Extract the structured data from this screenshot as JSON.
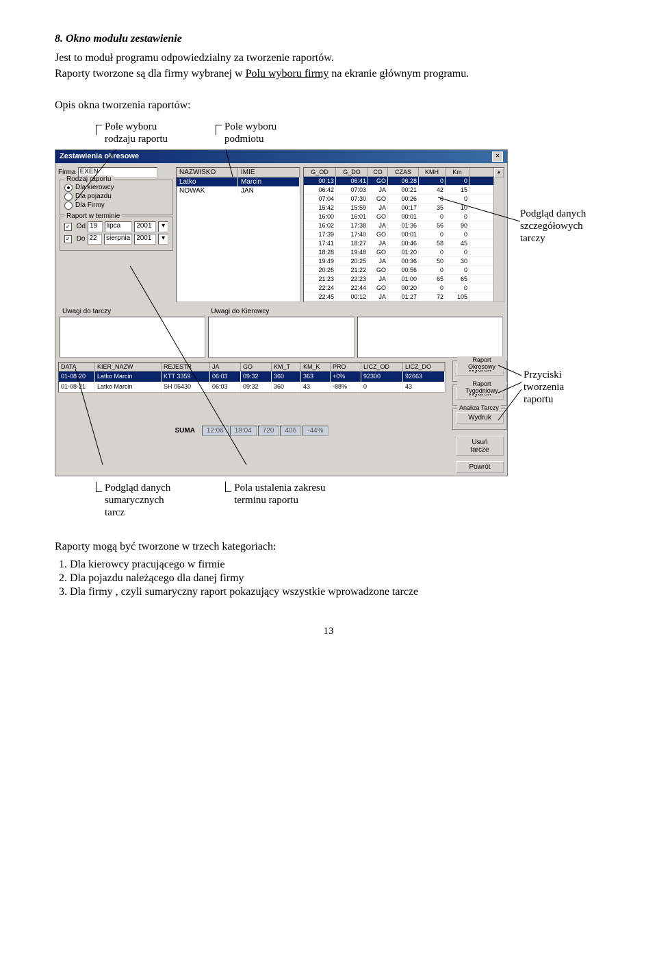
{
  "heading": "8.  Okno modułu zestawienie",
  "para1a": "Jest to moduł programu odpowiedzialny za tworzenie raportów.",
  "para1b": "Raporty tworzone są dla firmy wybranej w ",
  "para1b_u": "Polu wyboru firmy",
  "para1c": " na ekranie głównym programu.",
  "para2": "Opis okna tworzenia raportów:",
  "annot_top1": "Pole wyboru\nrodzaju raportu",
  "annot_top2": "Pole wyboru\npodmiotu",
  "annot_right1": "Podgląd danych\nszczegółowych\ntarczy",
  "annot_right2": "Przyciski\ntworzenia\nraportu",
  "annot_bot1": "Podgląd danych\nsumarycznych\ntarcz",
  "annot_bot2": "Pola  ustalenia zakresu\nterminu raportu",
  "win_title": "Zestawienia okresowe",
  "firma_label": "Firma",
  "firma_value": "EXEN",
  "rodzaj_legend": "Rodzaj raportu",
  "radio1": "Dla kierowcy",
  "radio2": "Dla pojazdu",
  "radio3": "Dla Firmy",
  "raport_legend": "Raport w terminie",
  "od_label": "Od",
  "od_day": "19",
  "od_month": "lipca",
  "od_year": "2001",
  "do_label": "Do",
  "do_day": "22",
  "do_month": "sierpnia",
  "do_year": "2001",
  "name_h1": "NAZWISKO",
  "name_h2": "IMIE",
  "names": [
    [
      "Latko",
      "Marcin"
    ],
    [
      "NOWAK",
      "JAN"
    ]
  ],
  "grid_hdrs": [
    "G_OD",
    "G_DO",
    "CO",
    "CZAS",
    "KMH",
    "Km"
  ],
  "grid_rows": [
    [
      "00:13",
      "06:41",
      "GO",
      "06:28",
      "0",
      "0"
    ],
    [
      "06:42",
      "07:03",
      "JA",
      "00:21",
      "42",
      "15"
    ],
    [
      "07:04",
      "07:30",
      "GO",
      "00:26",
      "0",
      "0"
    ],
    [
      "15:42",
      "15:59",
      "JA",
      "00:17",
      "35",
      "10"
    ],
    [
      "16:00",
      "16:01",
      "GO",
      "00:01",
      "0",
      "0"
    ],
    [
      "16:02",
      "17:38",
      "JA",
      "01:36",
      "56",
      "90"
    ],
    [
      "17:39",
      "17:40",
      "GO",
      "00:01",
      "0",
      "0"
    ],
    [
      "17:41",
      "18:27",
      "JA",
      "00:46",
      "58",
      "45"
    ],
    [
      "18:28",
      "19:48",
      "GO",
      "01:20",
      "0",
      "0"
    ],
    [
      "19:49",
      "20:25",
      "JA",
      "00:36",
      "50",
      "30"
    ],
    [
      "20:26",
      "21:22",
      "GO",
      "00:56",
      "0",
      "0"
    ],
    [
      "21:23",
      "22:23",
      "JA",
      "01:00",
      "65",
      "65"
    ],
    [
      "22:24",
      "22:44",
      "GO",
      "00:20",
      "0",
      "0"
    ],
    [
      "22:45",
      "00:12",
      "JA",
      "01:27",
      "72",
      "105"
    ]
  ],
  "memo1_label": "Uwagi do tarczy",
  "memo2_label": "Uwagi do Kierowcy",
  "bot_hdrs": [
    "DATA",
    "KIER_NAZW",
    "REJESTR",
    "JA",
    "GO",
    "KM_T",
    "KM_K",
    "PRO",
    "LICZ_OD",
    "LICZ_DO"
  ],
  "bot_rows": [
    [
      "01-08-20",
      "Latko Marcin",
      "KTT 3359",
      "06:03",
      "09:32",
      "360",
      "363",
      "+0%",
      "92300",
      "92663"
    ],
    [
      "01-08-21",
      "Latko Marcin",
      "SH 05430",
      "06:03",
      "09:32",
      "360",
      "43",
      "-88%",
      "0",
      "43"
    ]
  ],
  "grp1": "Raport Okresowy",
  "grp2": "Raport Tygodniowy",
  "grp3": "Analiza Tarczy",
  "btn_wydruk": "Wydruk",
  "btn_usun": "Usuń tarcze",
  "btn_powrot": "Powrót",
  "suma_label": "SUMA",
  "suma_vals": [
    "12:06",
    "19:04",
    "720",
    "406",
    "-44%"
  ],
  "para3": "Raporty mogą być tworzone w trzech kategoriach:",
  "li1": "Dla kierowcy pracującego w firmie",
  "li2": "Dla pojazdu należącego dla danej firmy",
  "li3": "Dla firmy , czyli sumaryczny raport pokazujący wszystkie wprowadzone tarcze",
  "pagenum": "13"
}
